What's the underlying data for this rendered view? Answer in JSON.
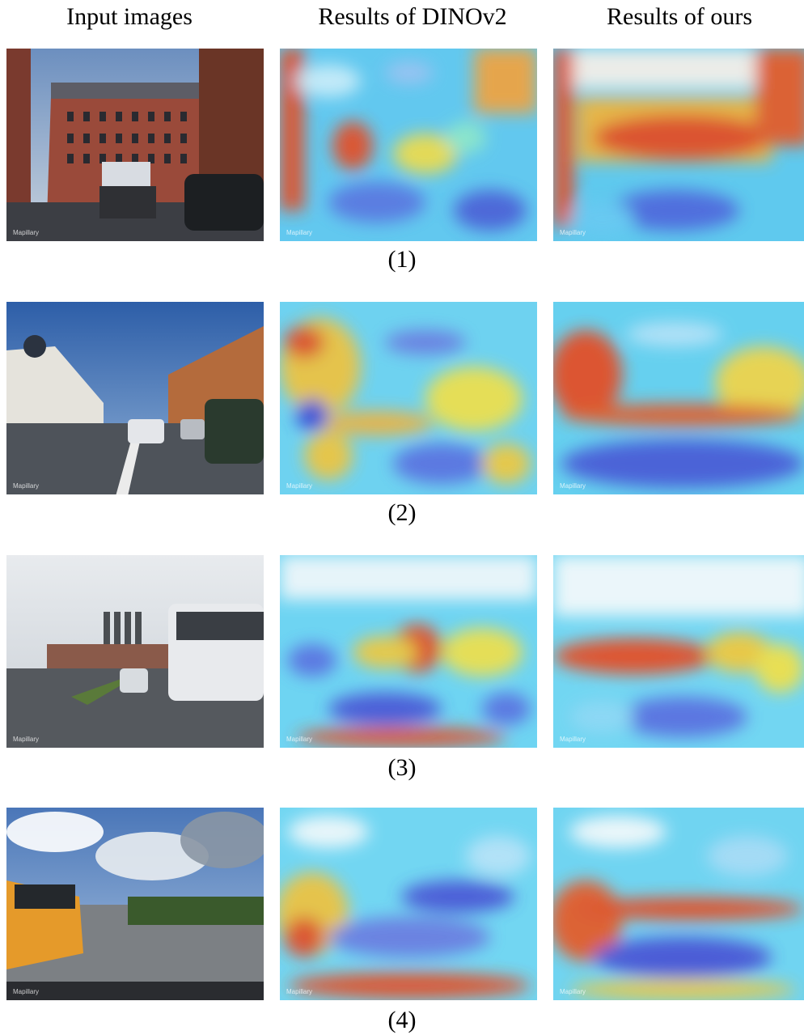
{
  "headers": {
    "col1": "Input images",
    "col2": "Results of DINOv2",
    "col3": "Results of ours"
  },
  "rows": [
    {
      "label": "(1)",
      "scene": "street with brick building and truck"
    },
    {
      "label": "(2)",
      "scene": "wide street with cars under blue sky"
    },
    {
      "label": "(3)",
      "scene": "road with bus and chimneys"
    },
    {
      "label": "(4)",
      "scene": "road with orange bus and clouds"
    }
  ],
  "watermark": "Mapillary",
  "colors": {
    "heat_low": "#3a3ad8",
    "heat_mid": "#4fd4f0",
    "heat_high": "#f2e640",
    "heat_max": "#e63a1f"
  }
}
